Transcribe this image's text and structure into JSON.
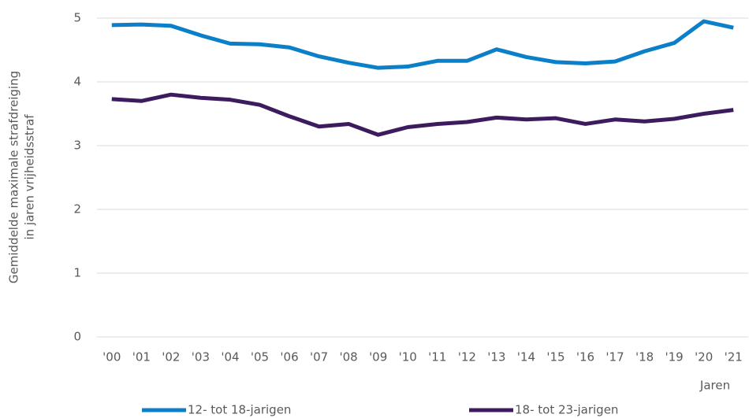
{
  "chart_data": {
    "type": "line",
    "xlabel": "Jaren",
    "ylabel": [
      "Gemiddelde maximale strafdreiging",
      "in jaren vrijheidsstraf"
    ],
    "categories": [
      "'00",
      "'01",
      "'02",
      "'03",
      "'04",
      "'05",
      "'06",
      "'07",
      "'08",
      "'09",
      "'10",
      "'11",
      "'12",
      "'13",
      "'14",
      "'15",
      "'16",
      "'17",
      "'18",
      "'19",
      "'20",
      "'21"
    ],
    "series": [
      {
        "name": "12- tot 18-jarigen",
        "color": "#0b80c8",
        "values": [
          4.89,
          4.9,
          4.88,
          4.73,
          4.6,
          4.59,
          4.54,
          4.4,
          4.3,
          4.22,
          4.24,
          4.33,
          4.33,
          4.51,
          4.39,
          4.31,
          4.29,
          4.32,
          4.48,
          4.61,
          4.95,
          4.85
        ]
      },
      {
        "name": "18- tot 23-jarigen",
        "color": "#3c1b5e",
        "values": [
          3.73,
          3.7,
          3.8,
          3.75,
          3.72,
          3.64,
          3.46,
          3.3,
          3.34,
          3.17,
          3.29,
          3.34,
          3.37,
          3.44,
          3.41,
          3.43,
          3.34,
          3.41,
          3.38,
          3.42,
          3.5,
          3.56
        ]
      }
    ],
    "ylim": [
      0,
      5
    ],
    "yticks": [
      0,
      1,
      2,
      3,
      4,
      5
    ],
    "grid": true,
    "legend": "bottom"
  }
}
